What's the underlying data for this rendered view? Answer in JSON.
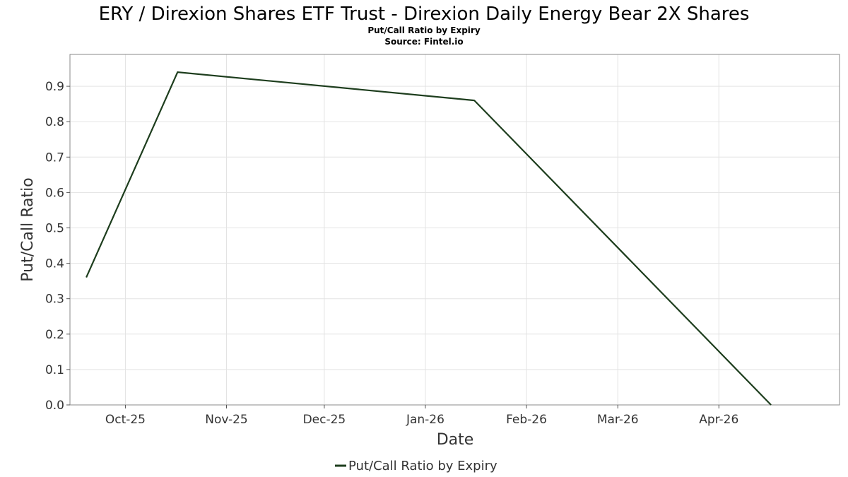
{
  "chart_data": {
    "type": "line",
    "title": "ERY / Direxion Shares ETF Trust - Direxion Daily Energy Bear 2X Shares",
    "subtitle": "Put/Call Ratio by Expiry",
    "source": "Source: Fintel.io",
    "xlabel": "Date",
    "ylabel": "Put/Call Ratio",
    "x_type": "date",
    "xlim": [
      "2025-09-14",
      "2026-05-08"
    ],
    "ylim": [
      0,
      0.99
    ],
    "yticks": [
      0.0,
      0.1,
      0.2,
      0.3,
      0.4,
      0.5,
      0.6,
      0.7,
      0.8,
      0.9
    ],
    "ytick_labels": [
      "0.0",
      "0.1",
      "0.2",
      "0.3",
      "0.4",
      "0.5",
      "0.6",
      "0.7",
      "0.8",
      "0.9"
    ],
    "xticks": [
      "2025-10-01",
      "2025-11-01",
      "2025-12-01",
      "2026-01-01",
      "2026-02-01",
      "2026-03-01",
      "2026-04-01"
    ],
    "xtick_labels": [
      "Oct-25",
      "Nov-25",
      "Dec-25",
      "Jan-26",
      "Feb-26",
      "Mar-26",
      "Apr-26"
    ],
    "grid": true,
    "legend_position": "bottom-center",
    "series": [
      {
        "name": "Put/Call Ratio by Expiry",
        "color": "#1d3d1d",
        "x": [
          "2025-09-19",
          "2025-10-17",
          "2026-01-16",
          "2026-04-17"
        ],
        "y": [
          0.36,
          0.94,
          0.86,
          0.0
        ]
      }
    ]
  }
}
